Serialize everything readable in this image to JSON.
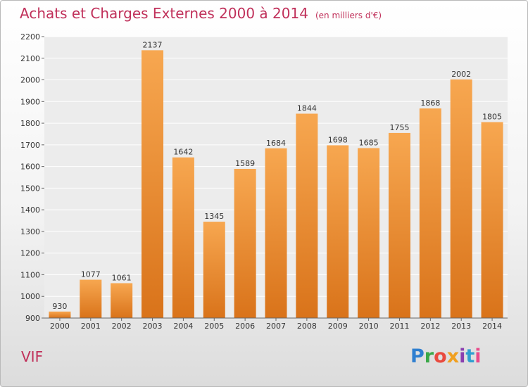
{
  "title": "Achats et Charges Externes 2000 à 2014",
  "subtitle": "(en milliers d'€)",
  "town": "VIF",
  "logo": {
    "text": "Proxiti",
    "letters": [
      {
        "ch": "P",
        "color": "#2f7fd0"
      },
      {
        "ch": "r",
        "color": "#3aa848"
      },
      {
        "ch": "o",
        "color": "#e94a3f"
      },
      {
        "ch": "x",
        "color": "#f0a020"
      },
      {
        "ch": "i",
        "color": "#8a3fb0"
      },
      {
        "ch": "t",
        "color": "#2f9fd0"
      },
      {
        "ch": "i",
        "color": "#e94a8a"
      }
    ]
  },
  "chart_data": {
    "type": "bar",
    "categories": [
      "2000",
      "2001",
      "2002",
      "2003",
      "2004",
      "2005",
      "2006",
      "2007",
      "2008",
      "2009",
      "2010",
      "2011",
      "2012",
      "2013",
      "2014"
    ],
    "values": [
      930,
      1077,
      1061,
      2137,
      1642,
      1345,
      1589,
      1684,
      1844,
      1698,
      1685,
      1755,
      1868,
      2002,
      1805
    ],
    "ylim": [
      900,
      2200
    ],
    "yticks": [
      900,
      1000,
      1100,
      1200,
      1300,
      1400,
      1500,
      1600,
      1700,
      1800,
      1900,
      2000,
      2100,
      2200
    ],
    "grid": true,
    "data_labels": true,
    "bar_color": "#f0922f"
  }
}
